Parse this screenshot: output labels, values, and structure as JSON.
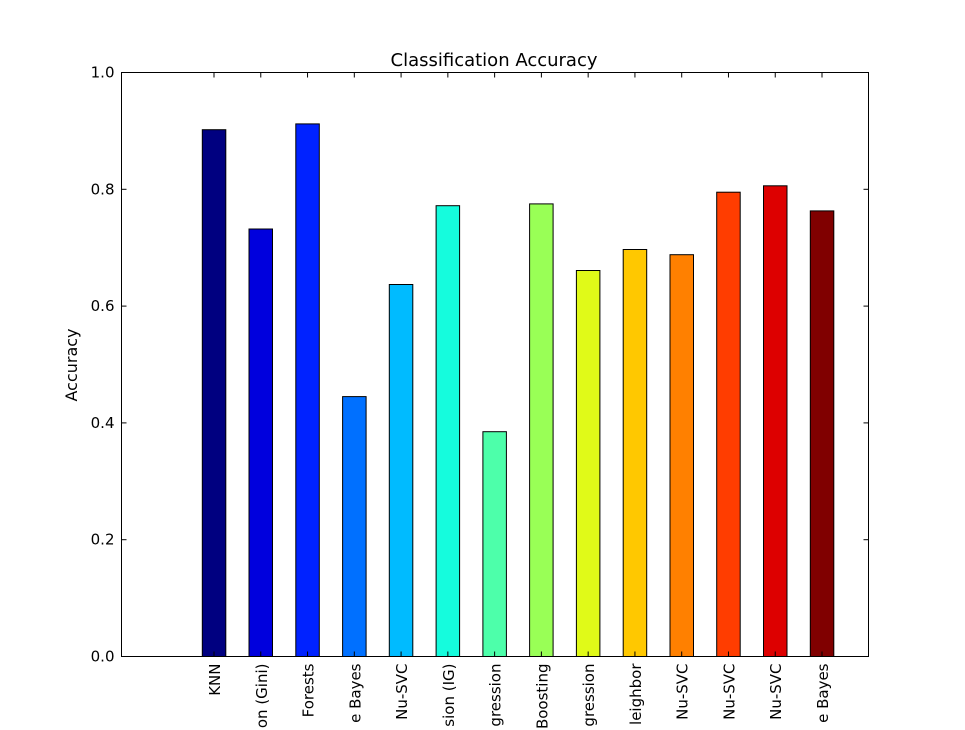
{
  "chart_data": {
    "type": "bar",
    "title": "Classification Accuracy",
    "xlabel": "",
    "ylabel": "Accuracy",
    "ylim": [
      0.0,
      1.0
    ],
    "yticks": [
      "0.0",
      "0.2",
      "0.4",
      "0.6",
      "0.8",
      "1.0"
    ],
    "grid": false,
    "categories": [
      "KNN",
      "on (Gini)",
      "Forests",
      "e Bayes",
      "Nu-SVC",
      "sion (IG)",
      "gression",
      "Boosting",
      "gression",
      "leighbor",
      "Nu-SVC",
      "Nu-SVC",
      "Nu-SVC",
      "e Bayes"
    ],
    "values": [
      0.902,
      0.732,
      0.912,
      0.445,
      0.637,
      0.772,
      0.385,
      0.775,
      0.661,
      0.697,
      0.688,
      0.795,
      0.806,
      0.763
    ],
    "colors": [
      "#000080",
      "#0000dd",
      "#0022ff",
      "#0070ff",
      "#00bbff",
      "#15fcdd",
      "#4dffaa",
      "#99ff56",
      "#e0fa18",
      "#ffc800",
      "#ff8000",
      "#ff3d00",
      "#dd0000",
      "#800000"
    ]
  }
}
